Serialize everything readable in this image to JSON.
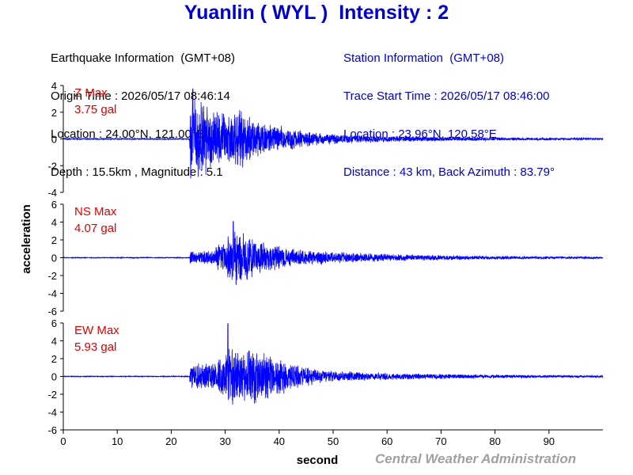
{
  "header": {
    "title": "Yuanlin ( WYL )  Intensity : 2"
  },
  "earthquake_info": {
    "heading": "Earthquake Information  (GMT+08)",
    "origin_time": "Origin Time : 2026/05/17 08:46:14",
    "location": "Location : 24.00°N, 121.00°E",
    "depth_magnitude": "Depth : 15.5km , Magnitude : 5.1"
  },
  "station_info": {
    "heading": "Station Information  (GMT+08)",
    "trace_start": "Trace Start Time : 2026/05/17 08:46:00",
    "location": "Location : 23.96°N, 120.58°E",
    "distance": "Distance : 43 km, Back Azimuth : 83.79°"
  },
  "footer": {
    "credit": "Central Weather Administration"
  },
  "colors": {
    "trace": "#0000ff",
    "max_label": "#e00000",
    "title": "#0000cc"
  },
  "chart_data": {
    "type": "line",
    "xlabel": "second",
    "ylabel": "acceleration",
    "x_ticks": [
      0,
      10,
      20,
      30,
      40,
      50,
      60,
      70,
      80,
      90
    ],
    "xlim": [
      0,
      100
    ],
    "grid": false,
    "panels": [
      {
        "name": "Z",
        "label": "Z Max",
        "max_text": "3.75 gal",
        "max": 3.75,
        "ylim": [
          -4,
          4
        ],
        "y_ticks": [
          -4,
          -2,
          0,
          2,
          4
        ],
        "p_arrival": 23.5,
        "peak_time": 24.0,
        "envelope": [
          [
            0,
            0.05
          ],
          [
            23.4,
            0.05
          ],
          [
            23.5,
            3.2
          ],
          [
            24.5,
            3.6
          ],
          [
            27,
            2.6
          ],
          [
            30,
            2.2
          ],
          [
            32,
            2.4
          ],
          [
            35,
            1.9
          ],
          [
            38,
            1.3
          ],
          [
            42,
            0.9
          ],
          [
            46,
            0.55
          ],
          [
            52,
            0.35
          ],
          [
            60,
            0.25
          ],
          [
            70,
            0.18
          ],
          [
            80,
            0.12
          ],
          [
            90,
            0.1
          ],
          [
            100,
            0.08
          ]
        ]
      },
      {
        "name": "NS",
        "label": "NS Max",
        "max_text": "4.07 gal",
        "max": 4.07,
        "ylim": [
          -6,
          6
        ],
        "y_ticks": [
          -6,
          -4,
          -2,
          0,
          2,
          4,
          6
        ],
        "p_arrival": 23.5,
        "peak_time": 31.5,
        "envelope": [
          [
            0,
            0.05
          ],
          [
            23.4,
            0.05
          ],
          [
            23.5,
            0.9
          ],
          [
            25,
            0.7
          ],
          [
            28,
            1.0
          ],
          [
            30,
            2.5
          ],
          [
            31.5,
            3.9
          ],
          [
            33,
            3.2
          ],
          [
            35,
            2.4
          ],
          [
            38,
            1.6
          ],
          [
            42,
            1.1
          ],
          [
            48,
            0.8
          ],
          [
            55,
            0.55
          ],
          [
            65,
            0.35
          ],
          [
            75,
            0.25
          ],
          [
            85,
            0.18
          ],
          [
            100,
            0.12
          ]
        ]
      },
      {
        "name": "EW",
        "label": "EW Max",
        "max_text": "5.93 gal",
        "max": 5.93,
        "ylim": [
          -6,
          6
        ],
        "y_ticks": [
          -6,
          -4,
          -2,
          0,
          2,
          4,
          6
        ],
        "p_arrival": 23.5,
        "peak_time": 30.5,
        "envelope": [
          [
            0,
            0.05
          ],
          [
            23.4,
            0.05
          ],
          [
            23.5,
            1.6
          ],
          [
            25,
            1.8
          ],
          [
            28,
            1.5
          ],
          [
            30,
            2.6
          ],
          [
            31,
            3.6
          ],
          [
            33,
            2.8
          ],
          [
            35,
            3.4
          ],
          [
            37,
            3.0
          ],
          [
            40,
            2.2
          ],
          [
            44,
            1.3
          ],
          [
            48,
            0.8
          ],
          [
            55,
            0.5
          ],
          [
            65,
            0.35
          ],
          [
            75,
            0.25
          ],
          [
            85,
            0.18
          ],
          [
            100,
            0.12
          ]
        ]
      }
    ]
  }
}
